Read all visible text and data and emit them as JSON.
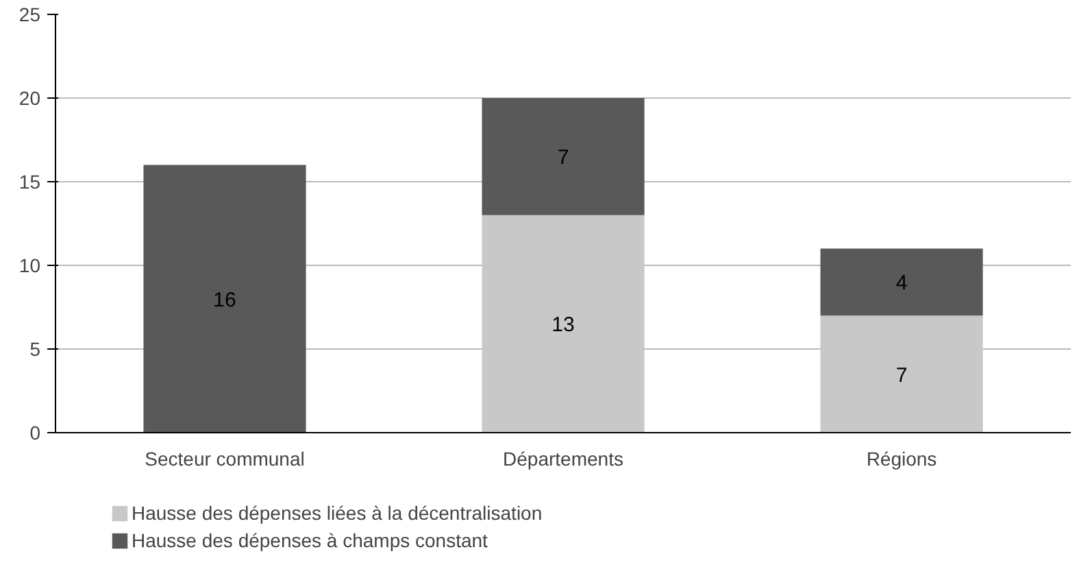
{
  "chart_data": {
    "type": "bar",
    "stacked": true,
    "categories": [
      "Secteur communal",
      "Départements",
      "Régions"
    ],
    "series": [
      {
        "name": "Hausse des dépenses liées à la décentralisation",
        "color": "#c8c8c8",
        "values": [
          null,
          13,
          7
        ]
      },
      {
        "name": "Hausse des dépenses à champs constant",
        "color": "#595959",
        "values": [
          16,
          7,
          4
        ]
      }
    ],
    "ylim": [
      0,
      25
    ],
    "yticks": [
      0,
      5,
      10,
      15,
      20,
      25
    ],
    "grid": "y",
    "legend": "bottom left",
    "data_labels": true
  }
}
